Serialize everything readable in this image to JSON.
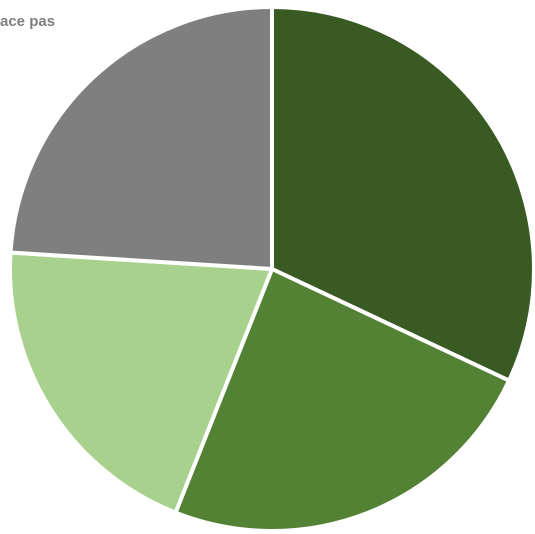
{
  "chart_data": {
    "type": "pie",
    "categories": [
      null,
      null,
      null,
      "ace pas"
    ],
    "values": [
      32,
      24,
      20,
      24
    ],
    "colors": [
      "#3a5a24",
      "#548235",
      "#a9d18e",
      "#7f7f7f"
    ]
  }
}
